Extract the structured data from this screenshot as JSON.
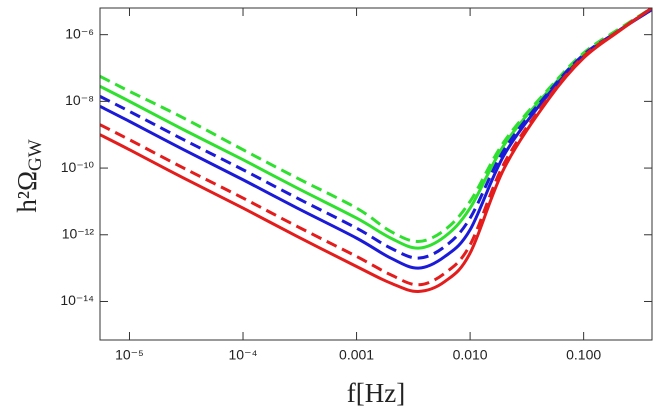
{
  "chart_data": {
    "type": "line",
    "xlabel": "f[Hz]",
    "ylabel": "h²Ω",
    "ylabel_subscript": "GW",
    "xscale": "log",
    "yscale": "log",
    "xlim": [
      5.5e-06,
      0.4
    ],
    "ylim": [
      7e-16,
      6.3e-06
    ],
    "xticks": [
      {
        "value": 1e-05,
        "label": "10⁻⁵"
      },
      {
        "value": 0.0001,
        "label": "10⁻⁴"
      },
      0.001,
      {
        "value": 0.01,
        "label": "0.010"
      },
      {
        "value": 0.1,
        "label": "0.100"
      }
    ],
    "yticks": [
      {
        "value": 1e-06,
        "label": "10⁻⁶"
      },
      {
        "value": 1e-08,
        "label": "10⁻⁸"
      },
      {
        "value": 1e-10,
        "label": "10⁻¹⁰"
      },
      {
        "value": 1e-12,
        "label": "10⁻¹²"
      },
      {
        "value": 1e-14,
        "label": "10⁻¹⁴"
      }
    ],
    "x": [
      5.5e-06,
      1e-05,
      3e-05,
      0.0001,
      0.0003,
      0.001,
      0.002,
      0.0035,
      0.006,
      0.01,
      0.02,
      0.05,
      0.1,
      0.2,
      0.4
    ],
    "series": [
      {
        "color": "#2fe02f",
        "linestyle": "dashed",
        "values": [
          5.62e-08,
          2e-08,
          3.16e-09,
          3.55e-10,
          5.01e-11,
          6.31e-12,
          1.26e-12,
          6.31e-13,
          1.41e-12,
          1e-11,
          6.31e-10,
          2.51e-08,
          2.82e-07,
          1.41e-06,
          6.31e-06
        ]
      },
      {
        "color": "#2fe02f",
        "linestyle": "solid",
        "values": [
          2.82e-08,
          1e-08,
          1.41e-09,
          1.78e-10,
          2.51e-11,
          3.16e-12,
          7.94e-13,
          3.98e-13,
          8.91e-13,
          6.31e-12,
          5.01e-10,
          2.24e-08,
          2.51e-07,
          1.26e-06,
          6.31e-06
        ]
      },
      {
        "color": "#1a1ad8",
        "linestyle": "dashed",
        "values": [
          1.41e-08,
          5.01e-09,
          7.08e-10,
          8.91e-11,
          1.26e-11,
          1.58e-12,
          3.98e-13,
          2e-13,
          4.47e-13,
          3.16e-12,
          3.55e-10,
          2e-08,
          2.51e-07,
          1.26e-06,
          6.31e-06
        ]
      },
      {
        "color": "#1a1ad8",
        "linestyle": "solid",
        "values": [
          7.08e-09,
          2.51e-09,
          3.55e-10,
          4.47e-11,
          6.31e-12,
          7.94e-13,
          2e-13,
          1e-13,
          2.24e-13,
          1.41e-12,
          2.51e-10,
          1.78e-08,
          2.24e-07,
          1.26e-06,
          5.62e-06
        ]
      },
      {
        "color": "#e41c1c",
        "linestyle": "dashed",
        "values": [
          2e-09,
          7.08e-10,
          1e-10,
          1.26e-11,
          1.78e-12,
          2.24e-13,
          6.31e-14,
          3.16e-14,
          7.08e-14,
          5.01e-13,
          1.41e-10,
          1.41e-08,
          2.24e-07,
          1.26e-06,
          6.31e-06
        ]
      },
      {
        "color": "#e41c1c",
        "linestyle": "solid",
        "values": [
          1e-09,
          3.55e-10,
          5.01e-11,
          6.31e-12,
          8.91e-13,
          1.12e-13,
          3.55e-14,
          2e-14,
          3.98e-14,
          2.82e-13,
          1e-10,
          1.26e-08,
          2e-07,
          1.2e-06,
          6.31e-06
        ]
      }
    ]
  }
}
